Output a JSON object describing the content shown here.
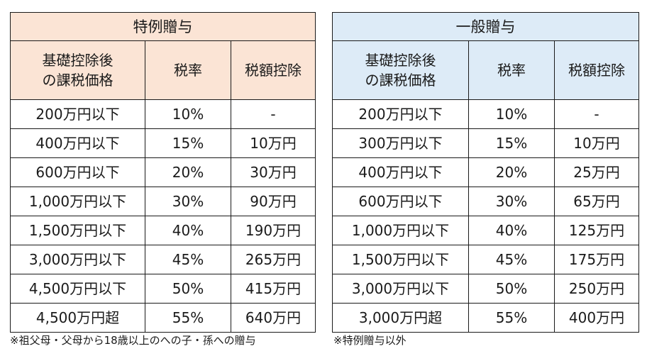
{
  "special": {
    "title": "特例贈与",
    "headers": {
      "base_line1": "基礎控除後",
      "base_line2": "の課税価格",
      "rate": "税率",
      "deduction": "税額控除"
    },
    "rows": [
      {
        "amount": "200万円以下",
        "rate": "10%",
        "deduction": "-"
      },
      {
        "amount": "400万円以下",
        "rate": "15%",
        "deduction": "10万円"
      },
      {
        "amount": "600万円以下",
        "rate": "20%",
        "deduction": "30万円"
      },
      {
        "amount": "1,000万円以下",
        "rate": "30%",
        "deduction": "90万円"
      },
      {
        "amount": "1,500万円以下",
        "rate": "40%",
        "deduction": "190万円"
      },
      {
        "amount": "3,000万円以下",
        "rate": "45%",
        "deduction": "265万円"
      },
      {
        "amount": "4,500万円以下",
        "rate": "50%",
        "deduction": "415万円"
      },
      {
        "amount": "4,500万円超",
        "rate": "55%",
        "deduction": "640万円"
      }
    ],
    "note": "※祖父母・父母から18歳以上のへの子・孫への贈与",
    "header_color": "#fbe4d5"
  },
  "general": {
    "title": "一般贈与",
    "headers": {
      "base_line1": "基礎控除後",
      "base_line2": "の課税価格",
      "rate": "税率",
      "deduction": "税額控除"
    },
    "rows": [
      {
        "amount": "200万円以下",
        "rate": "10%",
        "deduction": "-"
      },
      {
        "amount": "300万円以下",
        "rate": "15%",
        "deduction": "10万円"
      },
      {
        "amount": "400万円以下",
        "rate": "20%",
        "deduction": "25万円"
      },
      {
        "amount": "600万円以下",
        "rate": "30%",
        "deduction": "65万円"
      },
      {
        "amount": "1,000万円以下",
        "rate": "40%",
        "deduction": "125万円"
      },
      {
        "amount": "1,500万円以下",
        "rate": "45%",
        "deduction": "175万円"
      },
      {
        "amount": "3,000万円以下",
        "rate": "50%",
        "deduction": "250万円"
      },
      {
        "amount": "3,000万円超",
        "rate": "55%",
        "deduction": "400万円"
      }
    ],
    "note": "※特例贈与以外",
    "header_color": "#ddebf7"
  }
}
